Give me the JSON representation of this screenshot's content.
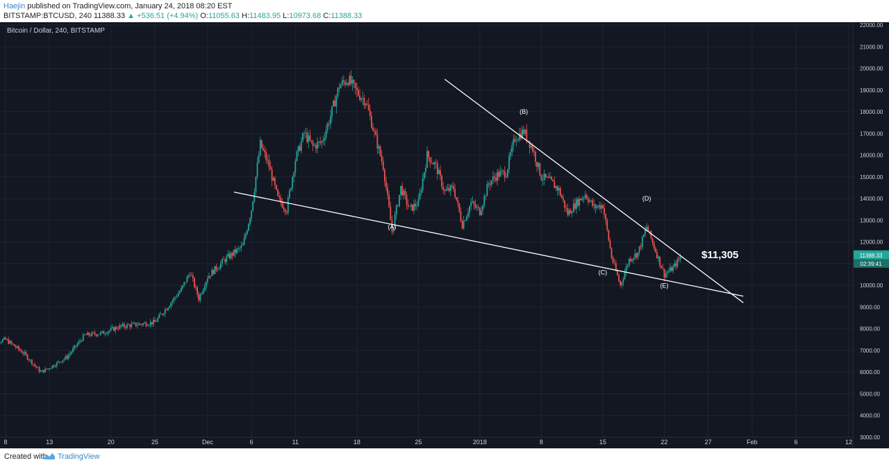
{
  "header": {
    "author": "Haejin",
    "published": " published on TradingView.com, January 24, 2018 08:20 EST",
    "symbol": "BITSTAMP:BTCUSD, 240",
    "last": "11388.33",
    "change": "+536.51 (+4.94%)",
    "o_label": "O:",
    "o": "11055.63",
    "h_label": "H:",
    "h": "11483.95",
    "l_label": "L:",
    "l": "10973.68",
    "c_label": "C:",
    "c": "11388.33"
  },
  "chart": {
    "title": "Bitcoin / Dollar, 240, BITSTAMP",
    "price_badge": "11388.33",
    "timer_badge": "02:39:41",
    "big_label": "$11,305"
  },
  "footer": {
    "created": "Created with",
    "brand": "TradingView"
  },
  "colors": {
    "background": "#131722",
    "up": "#26a69a",
    "down": "#ef5350",
    "grid": "#1f2433",
    "trendline": "#ffffff",
    "axis_text": "#cfd2dc"
  },
  "chart_data": {
    "type": "candlestick",
    "title": "Bitcoin / Dollar, 240, BITSTAMP",
    "interval": "240",
    "ylim": [
      3000,
      22000
    ],
    "y_ticks": [
      "3000.00",
      "4000.00",
      "5000.00",
      "6000.00",
      "7000.00",
      "8000.00",
      "9000.00",
      "10000.00",
      "11000.00",
      "12000.00",
      "13000.00",
      "14000.00",
      "15000.00",
      "16000.00",
      "17000.00",
      "18000.00",
      "19000.00",
      "20000.00",
      "21000.00",
      "22000.00"
    ],
    "x_ticks": [
      {
        "label": "8",
        "date": "2017-11-08"
      },
      {
        "label": "13",
        "date": "2017-11-13"
      },
      {
        "label": "20",
        "date": "2017-11-20"
      },
      {
        "label": "25",
        "date": "2017-11-25"
      },
      {
        "label": "Dec",
        "date": "2017-12-01"
      },
      {
        "label": "6",
        "date": "2017-12-06"
      },
      {
        "label": "11",
        "date": "2017-12-11"
      },
      {
        "label": "18",
        "date": "2017-12-18"
      },
      {
        "label": "25",
        "date": "2017-12-25"
      },
      {
        "label": "2018",
        "date": "2018-01-01"
      },
      {
        "label": "8",
        "date": "2018-01-08"
      },
      {
        "label": "15",
        "date": "2018-01-15"
      },
      {
        "label": "22",
        "date": "2018-01-22"
      },
      {
        "label": "27",
        "date": "2018-01-27"
      },
      {
        "label": "Feb",
        "date": "2018-02-01"
      },
      {
        "label": "6",
        "date": "2018-02-06"
      },
      {
        "label": "12",
        "date": "2018-02-12"
      }
    ],
    "price_path": [
      [
        "2017-11-06",
        7300
      ],
      [
        "2017-11-08",
        7500
      ],
      [
        "2017-11-10",
        6900
      ],
      [
        "2017-11-12",
        6000
      ],
      [
        "2017-11-13",
        6200
      ],
      [
        "2017-11-15",
        6700
      ],
      [
        "2017-11-17",
        7700
      ],
      [
        "2017-11-19",
        7800
      ],
      [
        "2017-11-21",
        8100
      ],
      [
        "2017-11-23",
        8200
      ],
      [
        "2017-11-25",
        8300
      ],
      [
        "2017-11-27",
        9300
      ],
      [
        "2017-11-28",
        9800
      ],
      [
        "2017-11-29",
        10600
      ],
      [
        "2017-11-30",
        9400
      ],
      [
        "2017-12-01",
        10400
      ],
      [
        "2017-12-03",
        11200
      ],
      [
        "2017-12-05",
        11800
      ],
      [
        "2017-12-06",
        13500
      ],
      [
        "2017-12-07",
        16500
      ],
      [
        "2017-12-08",
        15500
      ],
      [
        "2017-12-09",
        14000
      ],
      [
        "2017-12-10",
        13500
      ],
      [
        "2017-12-11",
        15800
      ],
      [
        "2017-12-12",
        17000
      ],
      [
        "2017-12-13",
        16400
      ],
      [
        "2017-12-14",
        16600
      ],
      [
        "2017-12-15",
        17800
      ],
      [
        "2017-12-16",
        19200
      ],
      [
        "2017-12-17",
        19500
      ],
      [
        "2017-12-18",
        18900
      ],
      [
        "2017-12-19",
        18500
      ],
      [
        "2017-12-20",
        17000
      ],
      [
        "2017-12-21",
        15500
      ],
      [
        "2017-12-22",
        12500
      ],
      [
        "2017-12-23",
        14500
      ],
      [
        "2017-12-24",
        13500
      ],
      [
        "2017-12-25",
        13800
      ],
      [
        "2017-12-26",
        16000
      ],
      [
        "2017-12-27",
        15500
      ],
      [
        "2017-12-28",
        14300
      ],
      [
        "2017-12-29",
        14500
      ],
      [
        "2017-12-30",
        12800
      ],
      [
        "2017-12-31",
        13800
      ],
      [
        "2018-01-01",
        13400
      ],
      [
        "2018-01-02",
        14700
      ],
      [
        "2018-01-03",
        15100
      ],
      [
        "2018-01-04",
        15200
      ],
      [
        "2018-01-05",
        16800
      ],
      [
        "2018-01-06",
        17100
      ],
      [
        "2018-01-07",
        16300
      ],
      [
        "2018-01-08",
        15000
      ],
      [
        "2018-01-09",
        14800
      ],
      [
        "2018-01-10",
        14400
      ],
      [
        "2018-01-11",
        13300
      ],
      [
        "2018-01-12",
        13800
      ],
      [
        "2018-01-13",
        14200
      ],
      [
        "2018-01-14",
        13600
      ],
      [
        "2018-01-15",
        13700
      ],
      [
        "2018-01-16",
        11300
      ],
      [
        "2018-01-17",
        10000
      ],
      [
        "2018-01-18",
        11200
      ],
      [
        "2018-01-19",
        11500
      ],
      [
        "2018-01-20",
        12700
      ],
      [
        "2018-01-21",
        11600
      ],
      [
        "2018-01-22",
        10500
      ],
      [
        "2018-01-23",
        10800
      ],
      [
        "2018-01-24",
        11388
      ]
    ],
    "trendlines": [
      {
        "name": "upper",
        "from": [
          "2017-12-28",
          19500
        ],
        "to": [
          "2018-01-31",
          9200
        ]
      },
      {
        "name": "lower",
        "from": [
          "2017-12-04",
          14300
        ],
        "to": [
          "2018-01-31",
          9500
        ]
      }
    ],
    "annotations": [
      {
        "text": "(A)",
        "date": "2017-12-22",
        "price": 12600
      },
      {
        "text": "(B)",
        "date": "2018-01-06",
        "price": 17900
      },
      {
        "text": "(C)",
        "date": "2018-01-15",
        "price": 10500
      },
      {
        "text": "(D)",
        "date": "2018-01-20",
        "price": 13900
      },
      {
        "text": "(E)",
        "date": "2018-01-22",
        "price": 9900
      }
    ],
    "legend": "none",
    "grid": true
  }
}
